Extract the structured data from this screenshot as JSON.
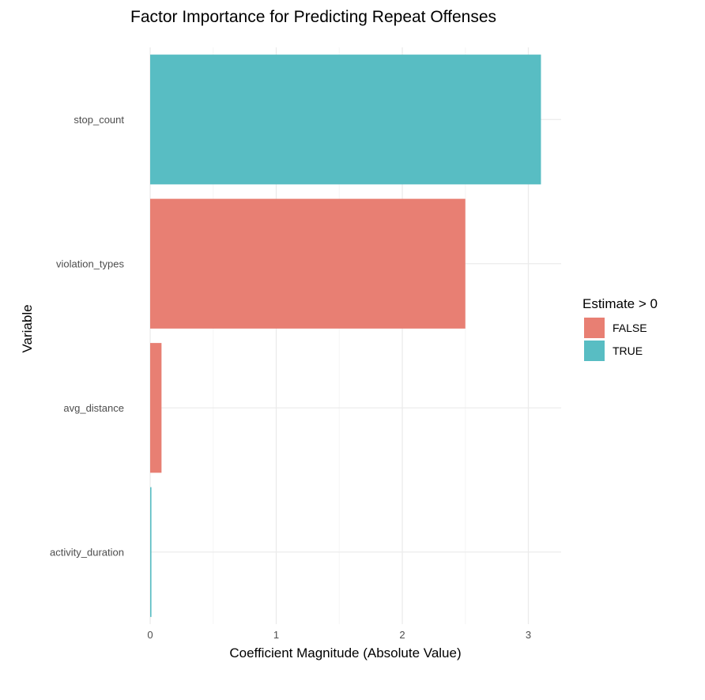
{
  "chart_data": {
    "type": "bar",
    "orientation": "horizontal",
    "title": "Factor Importance for Predicting Repeat Offenses",
    "xlabel": "Coefficient Magnitude (Absolute Value)",
    "ylabel": "Variable",
    "categories": [
      "stop_count",
      "violation_types",
      "avg_distance",
      "activity_duration"
    ],
    "values": [
      3.1,
      2.5,
      0.09,
      0.01
    ],
    "groups": [
      "TRUE",
      "FALSE",
      "FALSE",
      "TRUE"
    ],
    "xlim": [
      0,
      3.25
    ],
    "x_ticks": [
      "0",
      "1",
      "2",
      "3"
    ],
    "grid": true,
    "legend": {
      "title": "Estimate > 0",
      "placement": "right",
      "entries": [
        {
          "label": "FALSE",
          "color": "#E87F73"
        },
        {
          "label": "TRUE",
          "color": "#58BDC3"
        }
      ]
    }
  },
  "colors": {
    "FALSE": "#E87F73",
    "TRUE": "#58BDC3",
    "grid_major": "#ebebeb",
    "grid_minor": "#f5f5f5"
  }
}
